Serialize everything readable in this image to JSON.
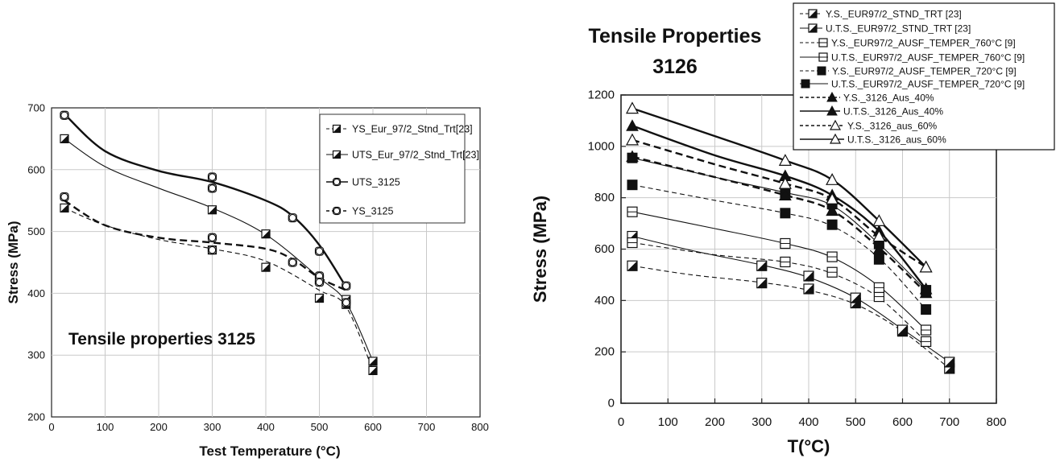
{
  "chart_data": [
    {
      "type": "line",
      "title": "",
      "annotation": "Tensile properties 3125",
      "xlabel": "Test Temperature (°C)",
      "ylabel": "Stress (MPa)",
      "xlim": [
        0,
        800
      ],
      "ylim": [
        200,
        700
      ],
      "xticks": [
        "0",
        "100",
        "200",
        "300",
        "400",
        "500",
        "600",
        "700",
        "800"
      ],
      "yticks": [
        "200",
        "300",
        "400",
        "500",
        "600",
        "700"
      ],
      "grid": true,
      "legend_position": "top-right",
      "series": [
        {
          "name": "YS_Eur_97/2_Stnd_Trt[23]",
          "marker": "half-square",
          "line": "dashed-thin",
          "x": [
            24,
            300,
            400,
            500,
            550,
            600
          ],
          "y": [
            538,
            470,
            442,
            392,
            382,
            275
          ],
          "curve": [
            [
              24,
              538
            ],
            [
              100,
              510
            ],
            [
              200,
              487
            ],
            [
              300,
              472
            ],
            [
              400,
              452
            ],
            [
              500,
              405
            ],
            [
              550,
              378
            ],
            [
              600,
              275
            ]
          ]
        },
        {
          "name": "UTS_Eur_97/2_Stnd_Trt[23]",
          "marker": "half-square",
          "line": "solid-thin",
          "x": [
            24,
            300,
            400,
            500,
            550,
            600
          ],
          "y": [
            650,
            535,
            496,
            422,
            390,
            290
          ],
          "curve": [
            [
              24,
              650
            ],
            [
              100,
              605
            ],
            [
              200,
              570
            ],
            [
              300,
              538
            ],
            [
              400,
              495
            ],
            [
              500,
              425
            ],
            [
              550,
              385
            ],
            [
              600,
              290
            ]
          ]
        },
        {
          "name": "UTS_3125",
          "marker": "open-circle-square",
          "line": "solid-thick",
          "x": [
            24,
            300,
            300,
            450,
            500,
            550
          ],
          "y": [
            688,
            588,
            570,
            522,
            468,
            412
          ],
          "curve": [
            [
              24,
              690
            ],
            [
              100,
              630
            ],
            [
              200,
              598
            ],
            [
              300,
              580
            ],
            [
              400,
              550
            ],
            [
              450,
              525
            ],
            [
              500,
              478
            ],
            [
              550,
              410
            ]
          ]
        },
        {
          "name": "YS_3125",
          "marker": "open-circle-square",
          "line": "dashed-thick",
          "x": [
            24,
            300,
            300,
            450,
            500,
            500,
            550
          ],
          "y": [
            556,
            490,
            470,
            450,
            428,
            418,
            385
          ],
          "curve": [
            [
              24,
              550
            ],
            [
              100,
              510
            ],
            [
              200,
              490
            ],
            [
              300,
              482
            ],
            [
              400,
              472
            ],
            [
              450,
              455
            ],
            [
              500,
              425
            ],
            [
              550,
              405
            ]
          ]
        }
      ]
    },
    {
      "type": "line",
      "title": "Tensile Properties 3126",
      "title_lines": [
        "Tensile Properties",
        "3126"
      ],
      "xlabel": "T(°C)",
      "ylabel": "Stress (MPa)",
      "xlim": [
        0,
        800
      ],
      "ylim": [
        0,
        1200
      ],
      "xticks": [
        "0",
        "100",
        "200",
        "300",
        "400",
        "500",
        "600",
        "700",
        "800"
      ],
      "yticks": [
        "0",
        "200",
        "400",
        "600",
        "800",
        "1000",
        "1200"
      ],
      "grid": true,
      "legend_position": "top-right",
      "series": [
        {
          "name": "Y.S._EUR97/2_STND_TRT [23]",
          "marker": "half-square",
          "line": "dashed-thin",
          "x": [
            24,
            300,
            400,
            500,
            600,
            700
          ],
          "y": [
            535,
            468,
            445,
            390,
            280,
            135
          ],
          "curve": [
            [
              24,
              535
            ],
            [
              150,
              500
            ],
            [
              300,
              470
            ],
            [
              400,
              440
            ],
            [
              500,
              385
            ],
            [
              600,
              280
            ],
            [
              700,
              135
            ]
          ]
        },
        {
          "name": "U.T.S._EUR97/2_STND_TRT [23]",
          "marker": "half-square",
          "line": "solid-thin",
          "x": [
            24,
            300,
            400,
            500,
            600,
            700
          ],
          "y": [
            650,
            535,
            495,
            410,
            285,
            160
          ],
          "curve": [
            [
              24,
              650
            ],
            [
              150,
              595
            ],
            [
              300,
              538
            ],
            [
              400,
              490
            ],
            [
              500,
              410
            ],
            [
              600,
              288
            ],
            [
              700,
              160
            ]
          ]
        },
        {
          "name": "Y.S._EUR97/2_AUSF_TEMPER_760°C [9]",
          "marker": "open-square",
          "line": "dashed-thin",
          "x": [
            24,
            350,
            450,
            550,
            650
          ],
          "y": [
            625,
            550,
            510,
            415,
            240
          ],
          "curve": [
            [
              24,
              625
            ],
            [
              200,
              578
            ],
            [
              350,
              550
            ],
            [
              450,
              505
            ],
            [
              550,
              410
            ],
            [
              650,
              240
            ]
          ]
        },
        {
          "name": "U.T.S._EUR97/2_AUSF_TEMPER_760°C [9]",
          "marker": "open-square",
          "line": "solid-thin",
          "x": [
            24,
            350,
            450,
            550,
            650
          ],
          "y": [
            745,
            622,
            570,
            450,
            285
          ],
          "curve": [
            [
              24,
              745
            ],
            [
              200,
              680
            ],
            [
              350,
              622
            ],
            [
              450,
              568
            ],
            [
              550,
              455
            ],
            [
              650,
              285
            ]
          ]
        },
        {
          "name": "Y.S._EUR97/2_AUSF_TEMPER_720°C [9]",
          "marker": "filled-square",
          "line": "dashed-thin",
          "x": [
            24,
            350,
            450,
            550,
            650
          ],
          "y": [
            850,
            740,
            695,
            560,
            365
          ],
          "curve": [
            [
              24,
              850
            ],
            [
              200,
              790
            ],
            [
              350,
              740
            ],
            [
              450,
              690
            ],
            [
              550,
              565
            ],
            [
              650,
              365
            ]
          ]
        },
        {
          "name": "U.T.S._EUR97/2_AUSF_TEMPER_720°C [9]",
          "marker": "filled-square",
          "line": "solid-thin",
          "x": [
            24,
            350,
            450,
            550,
            650
          ],
          "y": [
            955,
            820,
            775,
            620,
            440
          ],
          "curve": [
            [
              24,
              955
            ],
            [
              200,
              880
            ],
            [
              350,
              820
            ],
            [
              450,
              770
            ],
            [
              550,
              620
            ],
            [
              650,
              440
            ]
          ]
        },
        {
          "name": "Y.S._3126_Aus_40%",
          "marker": "filled-triangle",
          "line": "dashed-thick",
          "x": [
            24,
            350,
            450,
            550,
            650
          ],
          "y": [
            960,
            810,
            750,
            600,
            430
          ],
          "curve": [
            [
              24,
              960
            ],
            [
              200,
              880
            ],
            [
              350,
              810
            ],
            [
              450,
              750
            ],
            [
              550,
              605
            ],
            [
              650,
              430
            ]
          ]
        },
        {
          "name": "U.T.S._3126_Aus_40%",
          "marker": "filled-triangle",
          "line": "solid-thick",
          "x": [
            24,
            350,
            450,
            550,
            650
          ],
          "y": [
            1080,
            885,
            810,
            670,
            445
          ],
          "curve": [
            [
              24,
              1080
            ],
            [
              200,
              965
            ],
            [
              350,
              885
            ],
            [
              450,
              810
            ],
            [
              550,
              670
            ],
            [
              650,
              445
            ]
          ]
        },
        {
          "name": "Y.S._3126_aus_60%",
          "marker": "open-triangle",
          "line": "dashed-thick",
          "x": [
            24,
            350,
            450,
            550,
            650
          ],
          "y": [
            1025,
            855,
            795,
            650,
            530
          ],
          "curve": [
            [
              24,
              1025
            ],
            [
              200,
              930
            ],
            [
              350,
              855
            ],
            [
              450,
              795
            ],
            [
              550,
              650
            ],
            [
              650,
              530
            ]
          ]
        },
        {
          "name": "U.T.S._3126_aus_60%",
          "marker": "open-triangle",
          "line": "solid-thick",
          "x": [
            24,
            350,
            450,
            550,
            650
          ],
          "y": [
            1148,
            945,
            870,
            710,
            530
          ],
          "curve": [
            [
              24,
              1148
            ],
            [
              200,
              1040
            ],
            [
              350,
              945
            ],
            [
              450,
              870
            ],
            [
              550,
              710
            ],
            [
              650,
              530
            ]
          ]
        }
      ]
    }
  ]
}
